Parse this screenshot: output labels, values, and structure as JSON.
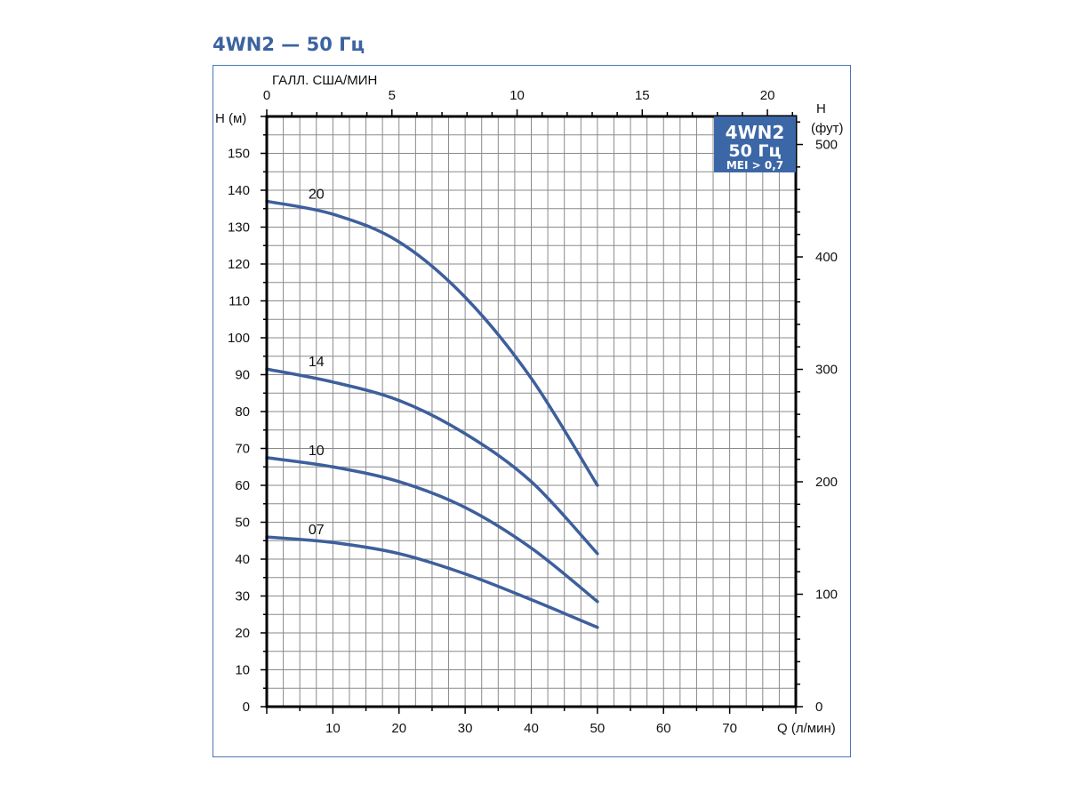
{
  "title": "4WN2 — 50 Гц",
  "colors": {
    "title": "#3b63a0",
    "frame": "#4a77b4",
    "curve": "#3d5f9c",
    "badge": "#3c67a6",
    "grid": "#8a8a8a"
  },
  "chart_data": {
    "type": "line",
    "xlabel": "Q (л/мин)",
    "ylabel": "H (м)",
    "x2label": "ГАЛЛ. США/МИН",
    "y2label_line1": "H",
    "y2label_line2": "(фут)",
    "xlim": [
      0,
      80
    ],
    "ylim": [
      0,
      160
    ],
    "x_ticks": [
      "10",
      "20",
      "30",
      "40",
      "50",
      "60",
      "70"
    ],
    "y_ticks": [
      "0",
      "10",
      "20",
      "30",
      "40",
      "50",
      "60",
      "70",
      "80",
      "90",
      "100",
      "110",
      "120",
      "130",
      "140",
      "150"
    ],
    "x2_ticks": [
      "0",
      "5",
      "10",
      "15",
      "20"
    ],
    "y2_ticks": [
      "0",
      "100",
      "200",
      "300",
      "400",
      "500"
    ],
    "grid": true,
    "badge": {
      "line1": "4WN2",
      "line2": "50 Гц",
      "line3": "MEI > 0,7"
    },
    "series": [
      {
        "name": "20",
        "x": [
          0,
          10,
          20,
          30,
          40,
          50
        ],
        "y": [
          137,
          133.5,
          126,
          111,
          89,
          60
        ]
      },
      {
        "name": "14",
        "x": [
          0,
          10,
          20,
          30,
          40,
          50
        ],
        "y": [
          91.5,
          88,
          83,
          74,
          61,
          41.5
        ]
      },
      {
        "name": "10",
        "x": [
          0,
          10,
          20,
          30,
          40,
          50
        ],
        "y": [
          67.5,
          65,
          61,
          54,
          43,
          28.5
        ]
      },
      {
        "name": "07",
        "x": [
          0,
          10,
          20,
          30,
          40,
          50
        ],
        "y": [
          46,
          44.5,
          41.5,
          36,
          29,
          21.5
        ]
      }
    ]
  }
}
